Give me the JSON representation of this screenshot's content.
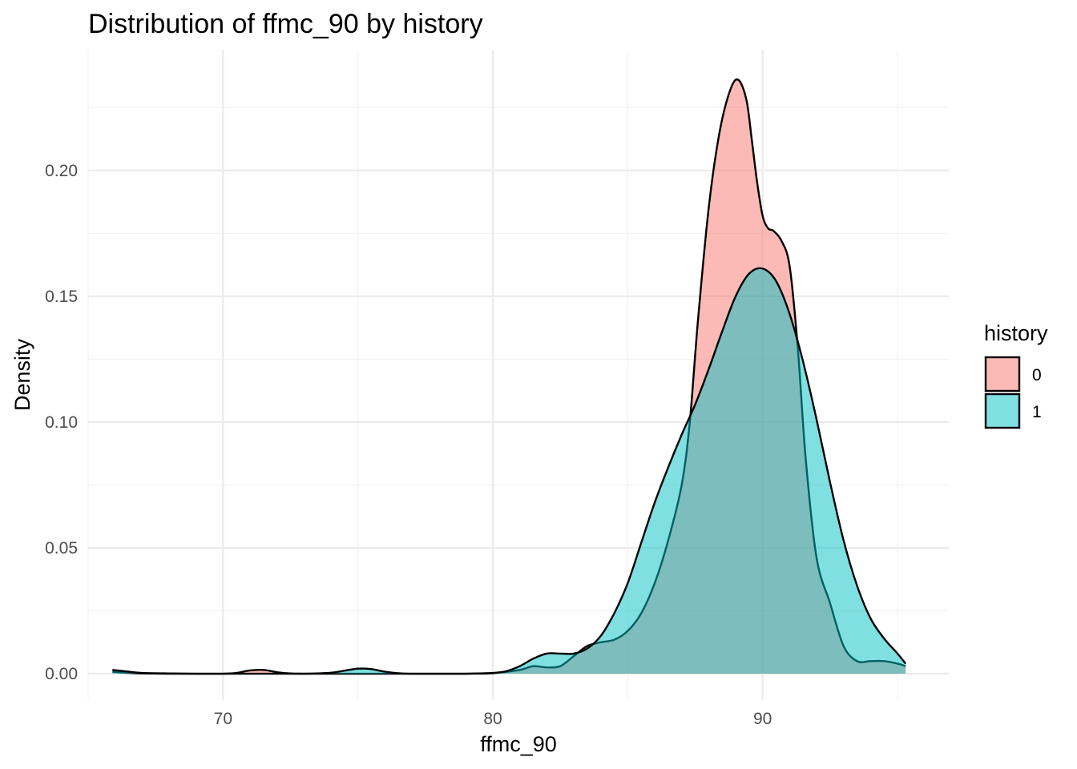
{
  "chart_data": {
    "type": "area",
    "title": "Distribution of ffmc_90 by history",
    "xlabel": "ffmc_90",
    "ylabel": "Density",
    "xlim": [
      65,
      96.9
    ],
    "ylim": [
      -0.0105,
      0.248
    ],
    "x_ticks": [
      70,
      80,
      90
    ],
    "y_ticks": [
      0.0,
      0.05,
      0.1,
      0.15,
      0.2
    ],
    "y_tick_labels": [
      "0.00",
      "0.05",
      "0.10",
      "0.15",
      "0.20"
    ],
    "grid": true,
    "legend": {
      "title": "history",
      "position": "right"
    },
    "series": [
      {
        "name": "0",
        "color": "#F8766D",
        "fill_opacity": 0.5,
        "x": [
          65.9,
          66.5,
          67,
          68,
          69,
          70,
          70.5,
          71,
          71.5,
          72,
          72.5,
          73,
          74,
          75,
          76,
          77,
          78,
          79,
          80,
          81,
          81.5,
          82,
          82.5,
          83,
          83.5,
          84,
          84.5,
          85,
          85.5,
          86,
          86.5,
          87,
          87.3,
          87.6,
          88,
          88.4,
          88.8,
          89.1,
          89.4,
          89.6,
          89.8,
          90,
          90.2,
          90.4,
          90.7,
          91,
          91.3,
          91.6,
          92,
          92.5,
          93,
          93.5,
          94,
          94.5,
          95,
          95.3
        ],
        "values": [
          0.0008,
          0.0003,
          0.0001,
          0.0,
          0.0,
          0.0,
          0.0003,
          0.0013,
          0.0015,
          0.0006,
          0.0001,
          0.0,
          0.0,
          0.0,
          0.0,
          0.0,
          0.0,
          0.0,
          0.0002,
          0.0015,
          0.003,
          0.0025,
          0.003,
          0.007,
          0.011,
          0.0125,
          0.0135,
          0.017,
          0.024,
          0.036,
          0.053,
          0.075,
          0.1,
          0.14,
          0.185,
          0.215,
          0.232,
          0.236,
          0.228,
          0.212,
          0.195,
          0.182,
          0.177,
          0.176,
          0.172,
          0.162,
          0.13,
          0.085,
          0.046,
          0.028,
          0.011,
          0.005,
          0.005,
          0.005,
          0.004,
          0.003
        ]
      },
      {
        "name": "1",
        "color": "#00BFC4",
        "fill_opacity": 0.5,
        "x": [
          65.9,
          66.5,
          67,
          68,
          69,
          70,
          71,
          72,
          73,
          74,
          74.5,
          75,
          75.5,
          76,
          76.5,
          77,
          78,
          79,
          80,
          80.5,
          81,
          81.5,
          82,
          82.5,
          83,
          83.5,
          84,
          84.5,
          85,
          85.5,
          86,
          86.5,
          87,
          87.5,
          88,
          88.5,
          89,
          89.5,
          90,
          90.5,
          91,
          91.5,
          92,
          92.5,
          93,
          93.5,
          94,
          94.5,
          95,
          95.3
        ],
        "values": [
          0.0015,
          0.0008,
          0.0003,
          0.0001,
          0.0,
          0.0,
          0.0,
          0.0,
          0.0,
          0.0004,
          0.0012,
          0.002,
          0.0018,
          0.0008,
          0.0002,
          0.0,
          0.0,
          0.0,
          0.0003,
          0.001,
          0.003,
          0.006,
          0.008,
          0.008,
          0.008,
          0.01,
          0.015,
          0.024,
          0.036,
          0.052,
          0.068,
          0.082,
          0.095,
          0.107,
          0.121,
          0.136,
          0.15,
          0.159,
          0.161,
          0.156,
          0.143,
          0.124,
          0.101,
          0.076,
          0.053,
          0.035,
          0.022,
          0.014,
          0.008,
          0.004
        ]
      }
    ]
  }
}
